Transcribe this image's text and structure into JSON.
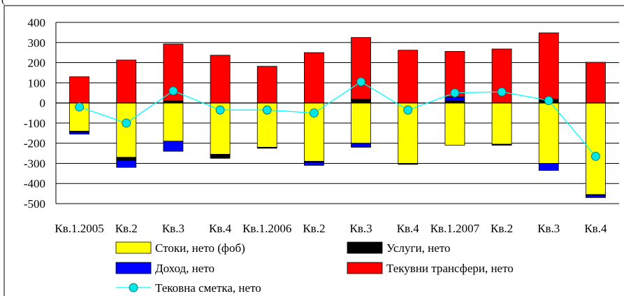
{
  "header_fragment": "(",
  "chart_data": {
    "type": "bar",
    "stacked": true,
    "categories": [
      "Кв.1.2005",
      "Кв.2",
      "Кв.3",
      "Кв.4",
      "Кв.1.2006",
      "Кв.2",
      "Кв.3",
      "Кв.4",
      "Кв.1.2007",
      "Кв.2",
      "Кв.3",
      "Кв.4"
    ],
    "series": [
      {
        "name": "Стоки, нето (фоб)",
        "color": "#ffff00",
        "values": [
          -140,
          -270,
          -190,
          -255,
          -220,
          -290,
          -200,
          -300,
          -210,
          -205,
          -300,
          -455
        ]
      },
      {
        "name": "Услуги, нето",
        "color": "#000000",
        "values": [
          -5,
          -15,
          10,
          -20,
          -5,
          -5,
          20,
          -5,
          10,
          -5,
          20,
          -5
        ]
      },
      {
        "name": "Доход, нето",
        "color": "#0000ff",
        "values": [
          -10,
          -35,
          -50,
          0,
          0,
          -15,
          -20,
          0,
          20,
          0,
          -35,
          -10
        ]
      },
      {
        "name": "Текувни трансфери, нето",
        "color": "#ff0000",
        "values": [
          130,
          213,
          283,
          237,
          182,
          250,
          305,
          262,
          226,
          268,
          328,
          202
        ]
      },
      {
        "name": "Тековна сметка, нето",
        "type": "line",
        "color": "#00ffff",
        "marker_fill": "#00e5e5",
        "values": [
          -20,
          -100,
          60,
          -35,
          -35,
          -50,
          105,
          -35,
          50,
          55,
          12,
          -265
        ]
      }
    ],
    "ylim": [
      -500,
      400
    ],
    "yticks": [
      400,
      300,
      200,
      100,
      0,
      -100,
      -200,
      -300,
      -400,
      -500
    ],
    "grid": true,
    "legend_position": "bottom"
  }
}
